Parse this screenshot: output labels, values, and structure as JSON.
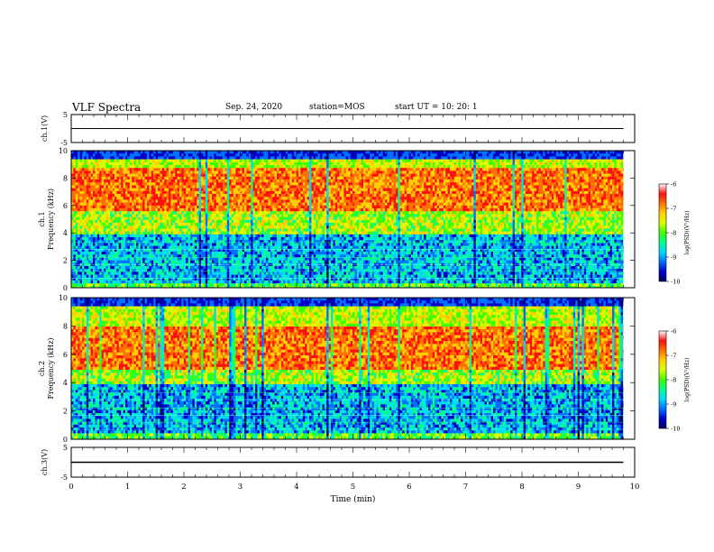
{
  "header": {
    "title": "VLF Spectra",
    "date": "Sep. 24, 2020",
    "station": "station=MOS",
    "start_ut": "start  UT =   10: 20: 1"
  },
  "chart_data": [
    {
      "type": "line",
      "panel": "ch1-voltage",
      "ylabel": "ch.1(V)",
      "ylim": [
        -5,
        5
      ],
      "yticks": [
        -5,
        5
      ],
      "xlim": [
        0,
        10
      ],
      "series": [
        {
          "x": [
            0,
            9.8
          ],
          "y": [
            0,
            0
          ]
        }
      ]
    },
    {
      "type": "heatmap",
      "panel": "ch1-spectrogram",
      "ylabel": "ch.1\nFrequency (kHz)",
      "ylim": [
        0,
        10
      ],
      "yticks": [
        0,
        2,
        4,
        6,
        8,
        10
      ],
      "xlim": [
        0,
        10
      ],
      "data_x_extent": [
        0,
        9.8
      ],
      "strong_band_khz": [
        5.5,
        8.8
      ],
      "colorbar": {
        "label": "log(PSD)(V²/Hz)",
        "range": [
          -10,
          -6
        ],
        "ticks": [
          -10,
          -9,
          -8,
          -7,
          -6
        ]
      }
    },
    {
      "type": "heatmap",
      "panel": "ch2-spectrogram",
      "ylabel": "ch.2\nFrequency (kHz)",
      "ylim": [
        0,
        10
      ],
      "yticks": [
        0,
        2,
        4,
        6,
        8,
        10
      ],
      "xlim": [
        0,
        10
      ],
      "data_x_extent": [
        0,
        9.8
      ],
      "strong_band_khz": [
        5.0,
        8.0
      ],
      "colorbar": {
        "label": "log(PSD)(V²/Hz)",
        "range": [
          -10,
          -6
        ],
        "ticks": [
          -10,
          -9,
          -8,
          -7,
          -6
        ]
      }
    },
    {
      "type": "line",
      "panel": "ch3-voltage",
      "ylabel": "ch.3(V)",
      "ylim": [
        -5,
        5
      ],
      "yticks": [
        -5,
        5
      ],
      "xlim": [
        0,
        10
      ],
      "xlabel": "Time (min)",
      "xticks": [
        0,
        1,
        2,
        3,
        4,
        5,
        6,
        7,
        8,
        9,
        10
      ],
      "series": [
        {
          "x": [
            0,
            9.8
          ],
          "y": [
            0,
            0
          ]
        }
      ]
    }
  ],
  "colors": {
    "scale": [
      "#000060",
      "#0000c8",
      "#0070ff",
      "#00d8ff",
      "#00ff90",
      "#40ff00",
      "#d8ff00",
      "#ffd000",
      "#ff7000",
      "#ff1010",
      "#ffffff"
    ]
  }
}
